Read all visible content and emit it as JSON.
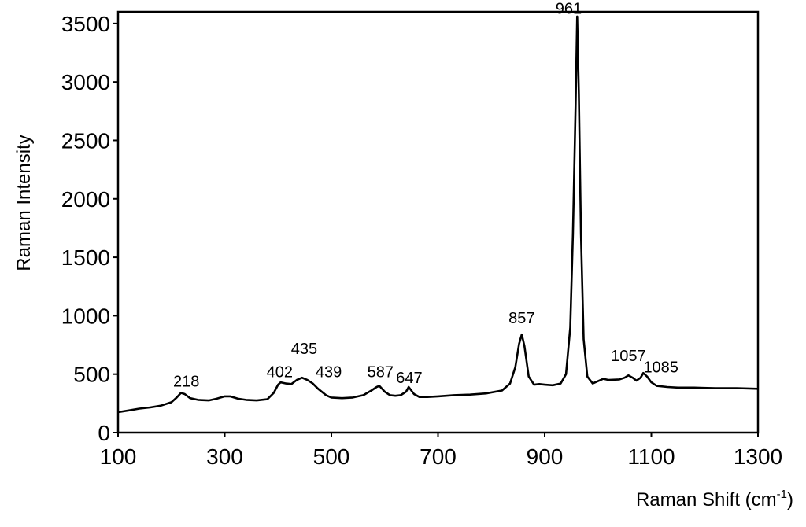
{
  "chart_data": {
    "type": "line",
    "title": "",
    "xlabel": "Raman Shift (cm",
    "xlabel_sup": "-1",
    "xlabel_close": ")",
    "ylabel": "Raman Intensity",
    "xlim": [
      100,
      1300
    ],
    "ylim": [
      0,
      3600
    ],
    "xticks": [
      100,
      300,
      500,
      700,
      900,
      1100,
      1300
    ],
    "yticks": [
      0,
      500,
      1000,
      1500,
      2000,
      2500,
      3000,
      3500
    ],
    "grid": false,
    "line_color": "#000000",
    "series": [
      {
        "x": [
          100,
          120,
          140,
          160,
          180,
          200,
          210,
          218,
          225,
          235,
          250,
          270,
          285,
          300,
          310,
          325,
          340,
          360,
          380,
          392,
          400,
          405,
          415,
          425,
          435,
          445,
          455,
          465,
          475,
          490,
          500,
          520,
          540,
          560,
          575,
          585,
          590,
          600,
          610,
          620,
          630,
          640,
          645,
          655,
          665,
          680,
          700,
          730,
          760,
          790,
          820,
          835,
          845,
          852,
          857,
          862,
          870,
          880,
          890,
          900,
          915,
          930,
          940,
          948,
          953,
          958,
          961,
          964,
          968,
          973,
          980,
          990,
          1000,
          1010,
          1020,
          1040,
          1050,
          1057,
          1065,
          1072,
          1080,
          1085,
          1092,
          1100,
          1110,
          1130,
          1150,
          1180,
          1220,
          1260,
          1300
        ],
        "y": [
          175,
          190,
          205,
          215,
          230,
          260,
          300,
          340,
          330,
          295,
          280,
          275,
          290,
          310,
          310,
          290,
          280,
          275,
          285,
          340,
          410,
          430,
          420,
          415,
          450,
          470,
          450,
          420,
          375,
          320,
          300,
          295,
          300,
          320,
          360,
          390,
          400,
          350,
          320,
          315,
          320,
          350,
          390,
          330,
          305,
          305,
          310,
          320,
          325,
          335,
          360,
          420,
          560,
          760,
          840,
          740,
          480,
          410,
          415,
          410,
          405,
          420,
          500,
          900,
          1700,
          2800,
          3560,
          2900,
          1700,
          800,
          480,
          420,
          440,
          460,
          450,
          455,
          470,
          490,
          470,
          445,
          470,
          510,
          480,
          430,
          400,
          390,
          385,
          385,
          380,
          380,
          375
        ]
      }
    ],
    "annotations": [
      {
        "text": "218",
        "x": 228,
        "y": 340
      },
      {
        "text": "402",
        "x": 403,
        "y": 420
      },
      {
        "text": "435",
        "x": 449,
        "y": 620
      },
      {
        "text": "439",
        "x": 495,
        "y": 420
      },
      {
        "text": "587",
        "x": 592,
        "y": 420
      },
      {
        "text": "647",
        "x": 646,
        "y": 370
      },
      {
        "text": "857",
        "x": 857,
        "y": 880
      },
      {
        "text": "961",
        "x": 945,
        "y": 3530
      },
      {
        "text": "1057",
        "x": 1057,
        "y": 560
      },
      {
        "text": "1085",
        "x": 1118,
        "y": 460
      }
    ]
  }
}
